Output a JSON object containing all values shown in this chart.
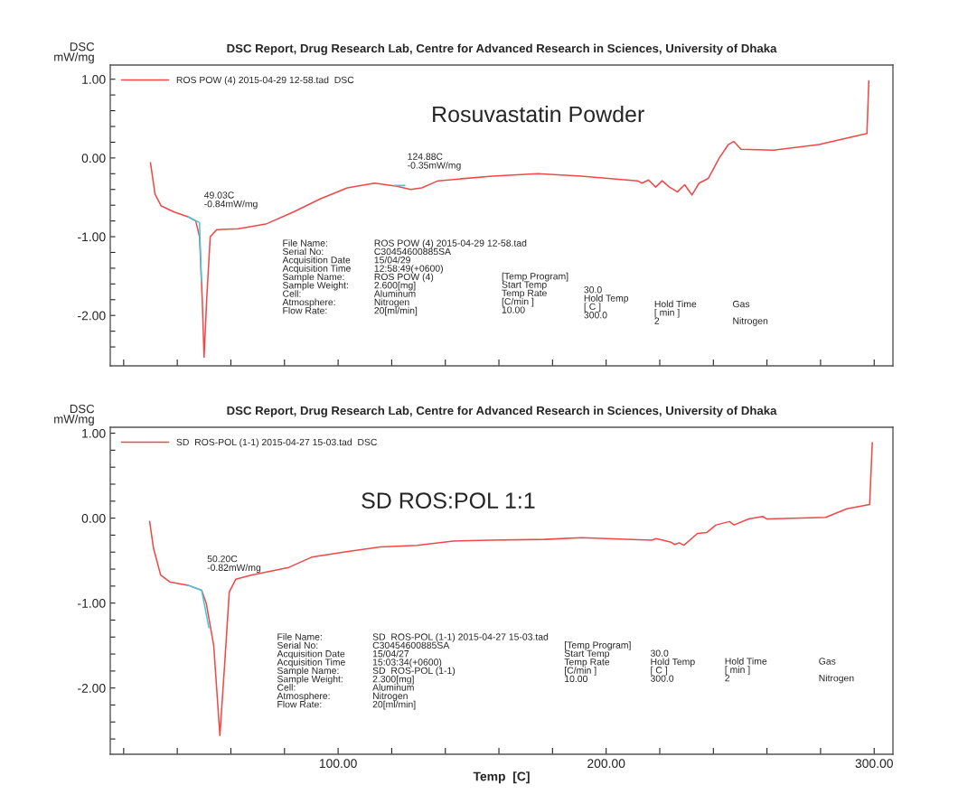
{
  "chart_data": [
    {
      "type": "line",
      "title": "DSC Report, Drug Research Lab, Centre for Advanced Research in Sciences, University of Dhaka",
      "ylabel": "DSC\nmW/mg",
      "xlim": [
        15,
        307
      ],
      "ylim": [
        -2.64,
        1.18
      ],
      "tick_labels": "y",
      "legend": "top left",
      "xticks": [
        {
          "value": 20,
          "label": null
        },
        {
          "value": 40,
          "label": null
        },
        {
          "value": 60,
          "label": null
        },
        {
          "value": 80,
          "label": null
        },
        {
          "value": 100,
          "label": null
        },
        {
          "value": 120,
          "label": null
        },
        {
          "value": 140,
          "label": null
        },
        {
          "value": 160,
          "label": null
        },
        {
          "value": 180,
          "label": null
        },
        {
          "value": 200,
          "label": null
        },
        {
          "value": 220,
          "label": null
        },
        {
          "value": 240,
          "label": null
        },
        {
          "value": 260,
          "label": null
        },
        {
          "value": 280,
          "label": null
        },
        {
          "value": 300,
          "label": null
        }
      ],
      "yticks": [
        {
          "value": 1.0,
          "label": "1.00"
        },
        {
          "value": 0.8,
          "label": null
        },
        {
          "value": 0.6,
          "label": null
        },
        {
          "value": 0.4,
          "label": null
        },
        {
          "value": 0.2,
          "label": null
        },
        {
          "value": 0.0,
          "label": "0.00"
        },
        {
          "value": -0.2,
          "label": null
        },
        {
          "value": -0.4,
          "label": null
        },
        {
          "value": -0.6,
          "label": null
        },
        {
          "value": -0.8,
          "label": null
        },
        {
          "value": -1.0,
          "label": "-1.00"
        },
        {
          "value": -1.2,
          "label": null
        },
        {
          "value": -1.4,
          "label": null
        },
        {
          "value": -1.6,
          "label": null
        },
        {
          "value": -1.8,
          "label": null
        },
        {
          "value": -2.0,
          "label": "-2.00"
        },
        {
          "value": -2.2,
          "label": null
        },
        {
          "value": -2.4,
          "label": null
        }
      ],
      "series": [
        {
          "name": "ROS POW (4) 2015-04-29 12-58.tad  DSC",
          "color": "#f04848",
          "x": [
            30,
            31.7,
            34,
            39.1,
            44.2,
            46.9,
            48.3,
            49.3,
            50.0,
            51.0,
            52.3,
            54.7,
            62.8,
            73,
            83.1,
            93.3,
            103.4,
            113.6,
            122,
            127,
            131.2,
            137.3,
            157.6,
            174.5,
            190.7,
            211.7,
            213.4,
            215.8,
            218.5,
            220.9,
            223.6,
            226.6,
            229.3,
            232,
            234.7,
            238.1,
            242.2,
            245.6,
            247.6,
            250.3,
            262.5,
            279.4,
            297.3,
            298
          ],
          "values": [
            -0.06,
            -0.46,
            -0.61,
            -0.69,
            -0.75,
            -0.8,
            -1.0,
            -1.78,
            -2.53,
            -1.78,
            -1.0,
            -0.91,
            -0.9,
            -0.84,
            -0.69,
            -0.52,
            -0.38,
            -0.32,
            -0.36,
            -0.4,
            -0.38,
            -0.29,
            -0.23,
            -0.2,
            -0.23,
            -0.29,
            -0.32,
            -0.28,
            -0.37,
            -0.29,
            -0.37,
            -0.43,
            -0.34,
            -0.47,
            -0.32,
            -0.26,
            0.0,
            0.17,
            0.21,
            0.11,
            0.1,
            0.17,
            0.31,
            0.98
          ]
        },
        {
          "color": "#40c8e0",
          "x": [
            44.2,
            48.3,
            49.0
          ],
          "values": [
            -0.75,
            -0.82,
            -1.57
          ]
        },
        {
          "color": "#40c8e0",
          "x": [
            121,
            124.9
          ],
          "values": [
            -0.35,
            -0.35
          ]
        }
      ],
      "annotations": [
        {
          "text": "49.03C\n-0.84mW/mg",
          "x": 49.03,
          "y": -0.84
        },
        {
          "text": "124.88C\n-0.35mW/mg",
          "x": 124.88,
          "y": -0.35
        },
        "Rosuvastatin Powder",
        "File Name:\nSerial No:\nAcquisition Date\nAcquisition Time\nSample Name:\nSample Weight:\nCell:\nAtmosphere:\nFlow Rate:",
        "ROS POW (4) 2015-04-29 12-58.tad\nC30454600885SA\n15/04/29\n12:58:49(+0600)\nROS POW (4)\n2.600[mg]\nAluminum\nNitrogen\n20[ml/min]",
        "[Temp Program]\nStart Temp\nTemp Rate\n[C/min ]\n10.00",
        "30.0\nHold Temp\n[ C ]\n300.0",
        "Hold Time\n[ min ]\n2",
        "Gas\n\nNitrogen"
      ]
    },
    {
      "type": "line",
      "title": "DSC Report, Drug Research Lab, Centre for Advanced Research in Sciences, University of Dhaka",
      "ylabel": "DSC\nmW/mg",
      "xlabel": "Temp  [C]",
      "xlim": [
        15,
        307
      ],
      "ylim": [
        -2.78,
        1.07
      ],
      "legend": "top left",
      "xticks": [
        {
          "value": 20,
          "label": null
        },
        {
          "value": 40,
          "label": null
        },
        {
          "value": 60,
          "label": null
        },
        {
          "value": 80,
          "label": null
        },
        {
          "value": 100,
          "label": "100.00"
        },
        {
          "value": 120,
          "label": null
        },
        {
          "value": 140,
          "label": null
        },
        {
          "value": 160,
          "label": null
        },
        {
          "value": 180,
          "label": null
        },
        {
          "value": 200,
          "label": "200.00"
        },
        {
          "value": 220,
          "label": null
        },
        {
          "value": 240,
          "label": null
        },
        {
          "value": 260,
          "label": null
        },
        {
          "value": 280,
          "label": null
        },
        {
          "value": 300,
          "label": "300.00"
        }
      ],
      "yticks": [
        {
          "value": 1.0,
          "label": "1.00"
        },
        {
          "value": 0.8,
          "label": null
        },
        {
          "value": 0.6,
          "label": null
        },
        {
          "value": 0.4,
          "label": null
        },
        {
          "value": 0.2,
          "label": null
        },
        {
          "value": 0.0,
          "label": "0.00"
        },
        {
          "value": -0.2,
          "label": null
        },
        {
          "value": -0.4,
          "label": null
        },
        {
          "value": -0.6,
          "label": null
        },
        {
          "value": -0.8,
          "label": null
        },
        {
          "value": -1.0,
          "label": "-1.00"
        },
        {
          "value": -1.2,
          "label": null
        },
        {
          "value": -1.4,
          "label": null
        },
        {
          "value": -1.6,
          "label": null
        },
        {
          "value": -1.8,
          "label": null
        },
        {
          "value": -2.0,
          "label": "-2.00"
        },
        {
          "value": -2.2,
          "label": null
        },
        {
          "value": -2.4,
          "label": null
        },
        {
          "value": -2.6,
          "label": null
        }
      ],
      "series": [
        {
          "name": "SD  ROS-POL (1-1) 2015-04-27 15-03.tad  DSC",
          "color": "#f04848",
          "x": [
            29.7,
            31.1,
            33.8,
            37.2,
            44.0,
            49.1,
            50.8,
            53.6,
            55.9,
            57.7,
            59.4,
            61.8,
            67.9,
            81.6,
            90.1,
            102,
            115.7,
            129.4,
            143,
            156.7,
            177.1,
            190.8,
            217,
            218.7,
            223.9,
            225.6,
            227.3,
            229,
            234.1,
            237.5,
            241,
            246,
            247.7,
            253.2,
            258.4,
            260,
            281.9,
            289.8,
            298.3,
            299.3
          ],
          "values": [
            -0.04,
            -0.35,
            -0.67,
            -0.75,
            -0.79,
            -0.85,
            -1.0,
            -1.5,
            -2.56,
            -1.71,
            -0.87,
            -0.72,
            -0.67,
            -0.58,
            -0.46,
            -0.4,
            -0.34,
            -0.32,
            -0.27,
            -0.26,
            -0.25,
            -0.23,
            -0.26,
            -0.24,
            -0.28,
            -0.31,
            -0.29,
            -0.32,
            -0.18,
            -0.17,
            -0.08,
            -0.04,
            -0.08,
            -0.01,
            0.02,
            -0.01,
            0.01,
            0.11,
            0.16,
            0.89
          ]
        },
        {
          "color": "#40c8e0",
          "x": [
            44.0,
            49.1,
            51.8
          ],
          "values": [
            -0.79,
            -0.85,
            -1.29
          ]
        }
      ],
      "annotations": [
        {
          "text": "50.20C\n-0.82mW/mg",
          "x": 50.2,
          "y": -0.82
        },
        "SD ROS:POL 1:1",
        "File Name:\nSerial No:\nAcquisition Date\nAcquisition Time\nSample Name:\nSample Weight:\nCell:\nAtmosphere:\nFlow Rate:",
        "SD  ROS-POL (1-1) 2015-04-27 15-03.tad\nC30454600885SA\n15/04/27\n15:03:34(+0600)\nSD  ROS-POL (1-1)\n2.300[mg]\nAluminum\nNitrogen\n20[ml/min]",
        "[Temp Program]\nStart Temp\nTemp Rate\n[C/min ]\n10.00",
        "30.0\nHold Temp\n[ C ]\n300.0",
        "Hold Time\n[ min ]\n2",
        "Gas\n\nNitrogen"
      ]
    }
  ]
}
